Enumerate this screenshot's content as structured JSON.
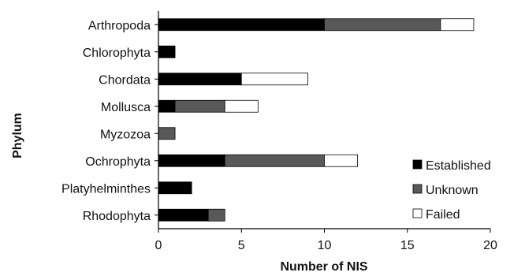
{
  "chart_data": {
    "type": "bar",
    "orientation": "horizontal",
    "stacked": true,
    "categories": [
      "Arthropoda",
      "Chlorophyta",
      "Chordata",
      "Mollusca",
      "Myzozoa",
      "Ochrophyta",
      "Platyhelminthes",
      "Rhodophyta"
    ],
    "series": [
      {
        "name": "Established",
        "color": "#000000",
        "values": [
          10,
          1,
          5,
          1,
          0,
          4,
          2,
          3
        ]
      },
      {
        "name": "Unknown",
        "color": "#595959",
        "values": [
          7,
          0,
          0,
          3,
          1,
          6,
          0,
          1
        ]
      },
      {
        "name": "Failed",
        "color": "#ffffff",
        "values": [
          2,
          0,
          4,
          2,
          0,
          2,
          0,
          0
        ]
      }
    ],
    "xlabel": "Number of NIS",
    "ylabel": "Phylum",
    "xlim": [
      0,
      20
    ],
    "xticks": [
      "0",
      "5",
      "10",
      "15",
      "20"
    ],
    "grid": false,
    "legend_position": "bottom-right"
  }
}
